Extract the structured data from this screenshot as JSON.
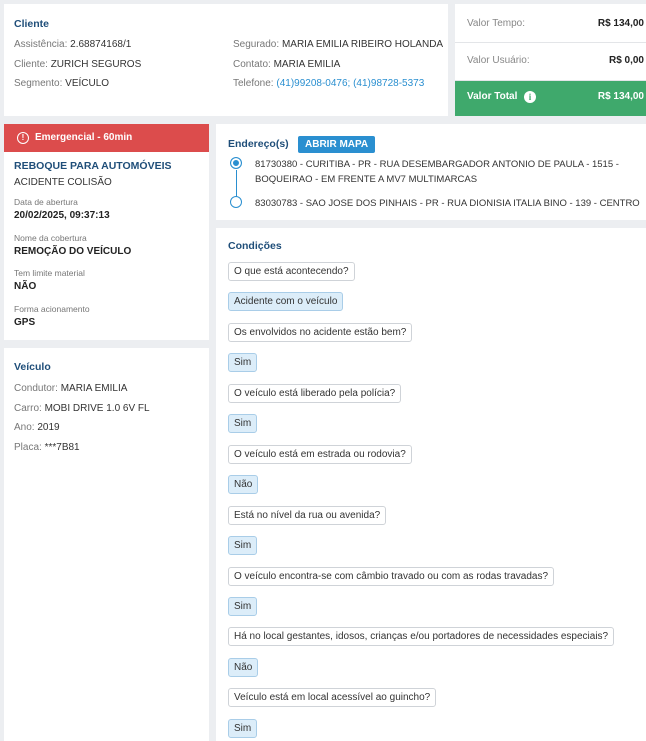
{
  "cliente": {
    "title": "Cliente",
    "left": [
      {
        "label": "Assistência:",
        "value": "2.68874168/1"
      },
      {
        "label": "Cliente:",
        "value": "ZURICH SEGUROS"
      },
      {
        "label": "Segmento:",
        "value": "VEÍCULO"
      }
    ],
    "right": [
      {
        "label": "Segurado:",
        "value": "MARIA EMILIA RIBEIRO HOLANDA"
      },
      {
        "label": "Contato:",
        "value": "MARIA EMILIA"
      },
      {
        "label": "Telefone:",
        "value": "(41)99208-0476; (41)98728-5373"
      }
    ]
  },
  "valores": [
    {
      "label": "Valor Tempo:",
      "value": "R$ 134,00"
    },
    {
      "label": "Valor Usuário:",
      "value": "R$ 0,00"
    },
    {
      "label": "Valor Total",
      "value": "R$ 134,00"
    }
  ],
  "servico": {
    "priority": "Emergencial - 60min",
    "service": "REBOQUE PARA AUTOMÓVEIS",
    "reason": "ACIDENTE COLISÃO",
    "fields": [
      {
        "label": "Data de abertura",
        "value": "20/02/2025, 09:37:13"
      },
      {
        "label": "Nome da cobertura",
        "value": "REMOÇÃO DO VEÍCULO"
      },
      {
        "label": "Tem limite material",
        "value": "NÃO"
      },
      {
        "label": "Forma acionamento",
        "value": "GPS"
      }
    ]
  },
  "veiculo": {
    "title": "Veículo",
    "fields": [
      {
        "label": "Condutor:",
        "value": "MARIA EMILIA"
      },
      {
        "label": "Carro:",
        "value": "MOBI DRIVE 1.0 6V FL"
      },
      {
        "label": "Ano:",
        "value": "2019"
      },
      {
        "label": "Placa:",
        "value": "***7B81"
      }
    ]
  },
  "enderecos": {
    "title": "Endereço(s)",
    "button": "ABRIR MAPA",
    "items": [
      "81730380 - CURITIBA - PR - RUA DESEMBARGADOR ANTONIO DE PAULA - 1515 - BOQUEIRAO - EM FRENTE A MV7 MULTIMARCAS",
      "83030783 - SAO JOSE DOS PINHAIS - PR - RUA DIONISIA ITALIA BINO - 139 - CENTRO"
    ]
  },
  "condicoes": {
    "title": "Condições",
    "items": [
      {
        "question": "O que está acontecendo?",
        "answer": "Acidente com o veículo"
      },
      {
        "question": "Os envolvidos no acidente estão bem?",
        "answer": "Sim"
      },
      {
        "question": "O veículo está liberado pela polícia?",
        "answer": "Sim"
      },
      {
        "question": "O veículo está em estrada ou rodovia?",
        "answer": "Não"
      },
      {
        "question": "Está no nível da rua ou avenida?",
        "answer": "Sim"
      },
      {
        "question": "O veículo encontra-se com câmbio travado ou com as rodas travadas?",
        "answer": "Sim"
      },
      {
        "question": "Há no local gestantes, idosos, crianças e/ou portadores de necessidades especiais?",
        "answer": "Não"
      },
      {
        "question": "Veículo está em local acessível ao guincho?",
        "answer": "Sim"
      }
    ]
  }
}
